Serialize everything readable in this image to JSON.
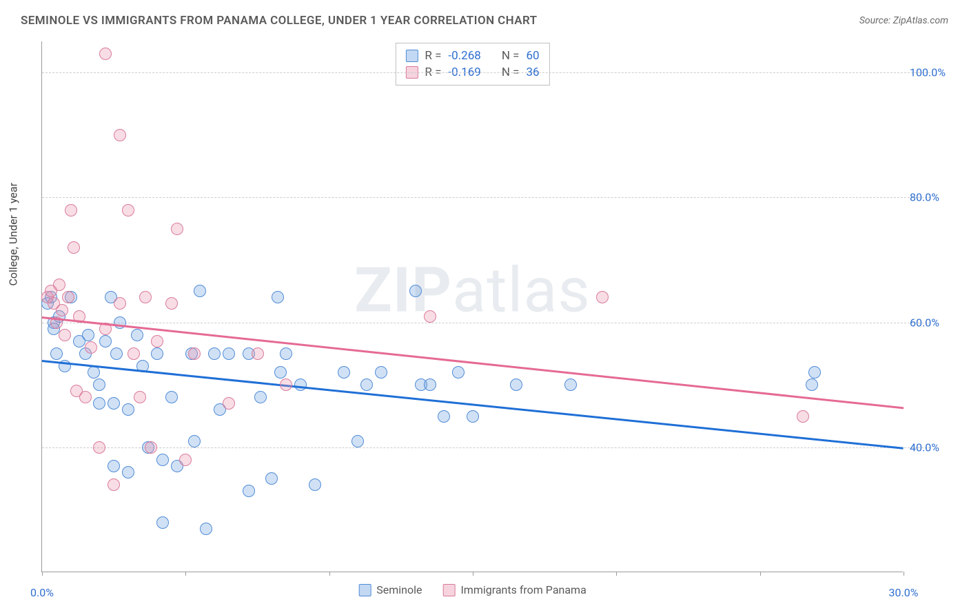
{
  "title": "SEMINOLE VS IMMIGRANTS FROM PANAMA COLLEGE, UNDER 1 YEAR CORRELATION CHART",
  "source_prefix": "Source: ",
  "source_name": "ZipAtlas.com",
  "ylabel": "College, Under 1 year",
  "watermark_bold": "ZIP",
  "watermark_rest": "atlas",
  "xlim": [
    0,
    30
  ],
  "ylim": [
    20,
    105
  ],
  "yticks": [
    40,
    60,
    80,
    100
  ],
  "ytick_labels": [
    "40.0%",
    "60.0%",
    "80.0%",
    "100.0%"
  ],
  "xtick_positions": [
    0,
    5,
    10,
    15,
    20,
    25,
    30
  ],
  "xtick_labels": {
    "0": "0.0%",
    "30": "30.0%"
  },
  "grid_color": "#cccccc",
  "background_color": "#ffffff",
  "series": [
    {
      "name": "Seminole",
      "color_fill": "rgba(123,169,226,0.35)",
      "color_stroke": "#4f8bd6",
      "class": "blue",
      "stats": {
        "R": "-0.268",
        "N": "60"
      },
      "trend": {
        "x1": 0,
        "y1": 54,
        "x2": 30,
        "y2": 40
      },
      "points": [
        [
          0.2,
          63
        ],
        [
          0.3,
          64
        ],
        [
          0.4,
          60
        ],
        [
          0.4,
          59
        ],
        [
          0.5,
          55
        ],
        [
          0.6,
          61
        ],
        [
          0.8,
          53
        ],
        [
          1.0,
          64
        ],
        [
          1.3,
          57
        ],
        [
          1.5,
          55
        ],
        [
          1.6,
          58
        ],
        [
          1.8,
          52
        ],
        [
          2.0,
          50
        ],
        [
          2.0,
          47
        ],
        [
          2.2,
          57
        ],
        [
          2.4,
          64
        ],
        [
          2.5,
          37
        ],
        [
          2.5,
          47
        ],
        [
          2.6,
          55
        ],
        [
          2.7,
          60
        ],
        [
          3.0,
          36
        ],
        [
          3.0,
          46
        ],
        [
          3.3,
          58
        ],
        [
          3.5,
          53
        ],
        [
          3.7,
          40
        ],
        [
          4.0,
          55
        ],
        [
          4.2,
          38
        ],
        [
          4.2,
          28
        ],
        [
          4.5,
          48
        ],
        [
          4.7,
          37
        ],
        [
          5.2,
          55
        ],
        [
          5.3,
          41
        ],
        [
          5.5,
          65
        ],
        [
          5.7,
          27
        ],
        [
          6.0,
          55
        ],
        [
          6.2,
          46
        ],
        [
          6.5,
          55
        ],
        [
          7.2,
          33
        ],
        [
          7.2,
          55
        ],
        [
          7.6,
          48
        ],
        [
          8.0,
          35
        ],
        [
          8.2,
          64
        ],
        [
          8.3,
          52
        ],
        [
          8.5,
          55
        ],
        [
          9.0,
          50
        ],
        [
          9.5,
          34
        ],
        [
          10.5,
          52
        ],
        [
          11.0,
          41
        ],
        [
          11.3,
          50
        ],
        [
          11.8,
          52
        ],
        [
          13.0,
          65
        ],
        [
          13.2,
          50
        ],
        [
          13.5,
          50
        ],
        [
          14.0,
          45
        ],
        [
          14.5,
          52
        ],
        [
          15.0,
          45
        ],
        [
          16.5,
          50
        ],
        [
          18.4,
          50
        ],
        [
          26.8,
          50
        ],
        [
          26.9,
          52
        ]
      ]
    },
    {
      "name": "Immigrants from Panama",
      "color_fill": "rgba(233,150,175,0.32)",
      "color_stroke": "#d97a9a",
      "class": "pink",
      "stats": {
        "R": "-0.169",
        "N": "36"
      },
      "trend": {
        "x1": 0,
        "y1": 61,
        "x2": 30,
        "y2": 46.5
      },
      "points": [
        [
          0.2,
          64
        ],
        [
          0.3,
          65
        ],
        [
          0.4,
          63
        ],
        [
          0.5,
          60
        ],
        [
          0.6,
          66
        ],
        [
          0.7,
          62
        ],
        [
          0.8,
          58
        ],
        [
          0.9,
          64
        ],
        [
          1.0,
          78
        ],
        [
          1.1,
          72
        ],
        [
          1.2,
          49
        ],
        [
          1.3,
          61
        ],
        [
          1.5,
          48
        ],
        [
          1.7,
          56
        ],
        [
          2.0,
          40
        ],
        [
          2.2,
          103
        ],
        [
          2.2,
          59
        ],
        [
          2.5,
          34
        ],
        [
          2.7,
          63
        ],
        [
          2.7,
          90
        ],
        [
          3.0,
          78
        ],
        [
          3.2,
          55
        ],
        [
          3.4,
          48
        ],
        [
          3.6,
          64
        ],
        [
          3.8,
          40
        ],
        [
          4.0,
          57
        ],
        [
          4.5,
          63
        ],
        [
          4.7,
          75
        ],
        [
          5.0,
          38
        ],
        [
          5.3,
          55
        ],
        [
          6.5,
          47
        ],
        [
          7.5,
          55
        ],
        [
          8.5,
          50
        ],
        [
          13.5,
          61
        ],
        [
          19.5,
          64
        ],
        [
          26.5,
          45
        ]
      ]
    }
  ],
  "stats_box": {
    "R_label": "R =",
    "N_label": "N ="
  },
  "bottom_legend": {
    "seminole": "Seminole",
    "panama": "Immigrants from Panama"
  }
}
